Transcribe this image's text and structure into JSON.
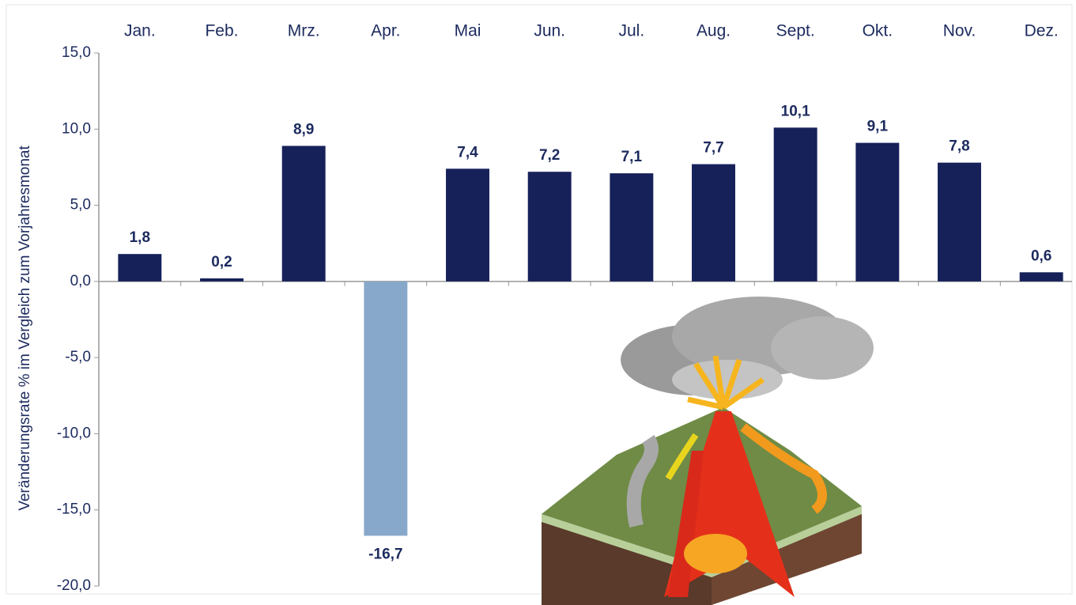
{
  "chart_data": {
    "type": "bar",
    "y_label": "Veränderungsrate % im Vergleich zum Vorjahresmonat",
    "categories": [
      "Jan.",
      "Feb.",
      "Mrz.",
      "Apr.",
      "Mai",
      "Jun.",
      "Jul.",
      "Aug.",
      "Sept.",
      "Okt.",
      "Nov.",
      "Dez."
    ],
    "values": [
      1.8,
      0.2,
      8.9,
      -16.7,
      7.4,
      7.2,
      7.1,
      7.7,
      10.1,
      9.1,
      7.8,
      0.6
    ],
    "value_labels": [
      "1,8",
      "0,2",
      "8,9",
      "-16,7",
      "7,4",
      "7,2",
      "7,1",
      "7,7",
      "10,1",
      "9,1",
      "7,8",
      "0,6"
    ],
    "colors": [
      "#16215a",
      "#16215a",
      "#16215a",
      "#88a8cb",
      "#16215a",
      "#16215a",
      "#16215a",
      "#16215a",
      "#16215a",
      "#16215a",
      "#16215a",
      "#16215a"
    ],
    "ylim": [
      -20,
      15
    ],
    "yticks": [
      {
        "value": 15,
        "label": "15,0"
      },
      {
        "value": 10,
        "label": "10,0"
      },
      {
        "value": 5,
        "label": "5,0"
      },
      {
        "value": 0,
        "label": "0,0"
      },
      {
        "value": -5,
        "label": "-5,0"
      },
      {
        "value": -10,
        "label": "-10,0"
      },
      {
        "value": -15,
        "label": "-15,0"
      },
      {
        "value": -20,
        "label": "-20,0"
      }
    ]
  }
}
